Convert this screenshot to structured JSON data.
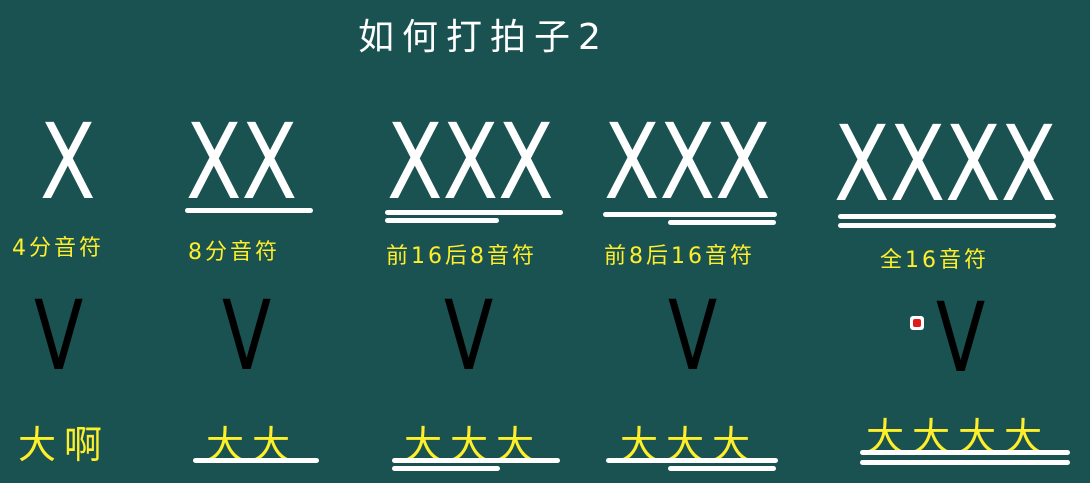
{
  "title": "如何打拍子2",
  "columns": [
    {
      "notes": "X",
      "label": "4分音符",
      "v": "V",
      "sound": "大啊"
    },
    {
      "notes": "XX",
      "label": "8分音符",
      "v": "V",
      "sound": "大大"
    },
    {
      "notes": "XXX",
      "label": "前16后8音符",
      "v": "V",
      "sound": "大大大"
    },
    {
      "notes": "XXX",
      "label": "前8后16音符",
      "v": "V",
      "sound": "大大大"
    },
    {
      "notes": "XXXX",
      "label": "全16音符",
      "v": "V",
      "sound": "大大大大"
    }
  ],
  "colors": {
    "background": "#1a5252",
    "text": "#ffffff",
    "label": "#ffef2a",
    "beat": "#000000"
  }
}
